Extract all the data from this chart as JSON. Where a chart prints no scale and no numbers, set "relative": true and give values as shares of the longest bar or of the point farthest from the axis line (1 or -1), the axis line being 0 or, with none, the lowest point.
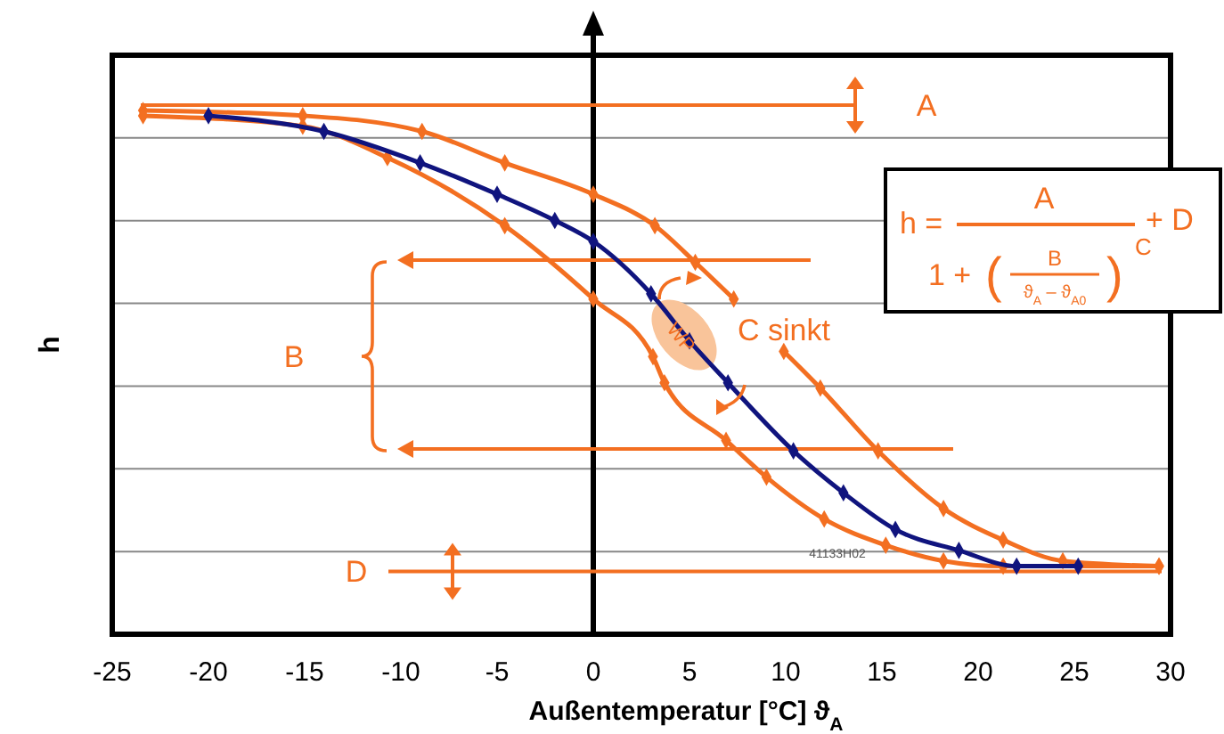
{
  "chart_data": {
    "type": "line",
    "relative": true,
    "xlabel": "Außentemperatur [°C] ϑ$_{A}$",
    "ylabel": "h",
    "xlim": [
      -25,
      30
    ],
    "xticks": [
      -25,
      -20,
      -15,
      -10,
      -5,
      0,
      5,
      10,
      15,
      20,
      25,
      30
    ],
    "grid": true,
    "marker": "diamond",
    "line_style": "solid",
    "series": [
      {
        "color": "#f36f21",
        "x": [
          -23.4,
          -15.1,
          -8.9,
          -4.6,
          0,
          3.2,
          5.3,
          7.3,
          8.6,
          9.9,
          11.8,
          14.8,
          18.2,
          21.3,
          24.4,
          29.4
        ],
        "values": [
          1,
          0.99,
          0.96,
          0.9,
          0.84,
          0.78,
          0.71,
          0.64,
          null,
          0.54,
          0.47,
          0.35,
          0.24,
          0.18,
          0.14,
          0.13
        ]
      },
      {
        "color": "#f36f21",
        "x": [
          -23.4,
          -15.1,
          -10.7,
          -4.6,
          0,
          3.1,
          3.7,
          6.9,
          9,
          12,
          15.2,
          18.2,
          21.3,
          29.4
        ],
        "values": [
          0.99,
          0.97,
          0.91,
          0.78,
          0.64,
          0.53,
          0.48,
          0.37,
          0.3,
          0.22,
          0.17,
          0.14,
          0.13,
          0.13
        ]
      },
      {
        "color": "#10147e",
        "x": [
          -20,
          -14,
          -9,
          -5,
          -2,
          0,
          3,
          5,
          7,
          10.4,
          13,
          15.7,
          19,
          22,
          25.2
        ],
        "values": [
          0.99,
          0.96,
          0.9,
          0.84,
          0.79,
          0.75,
          0.65,
          0.56,
          0.48,
          0.35,
          0.27,
          0.2,
          0.16,
          0.13,
          0.13
        ]
      }
    ],
    "ref_lines": [
      {
        "axis": "y",
        "value": 1.01,
        "label": "A",
        "color": "#f36f21"
      },
      {
        "axis": "y",
        "value": 0.12,
        "label": "D",
        "color": "#f36f21"
      }
    ],
    "annotations": [
      "h =",
      "A",
      "1 +",
      "(",
      "B",
      "ϑ$_{A}$ – ϑ$_{A0}$",
      ")",
      "C",
      "+ D",
      "B",
      "C sinkt",
      "WP",
      "41133H02"
    ]
  }
}
